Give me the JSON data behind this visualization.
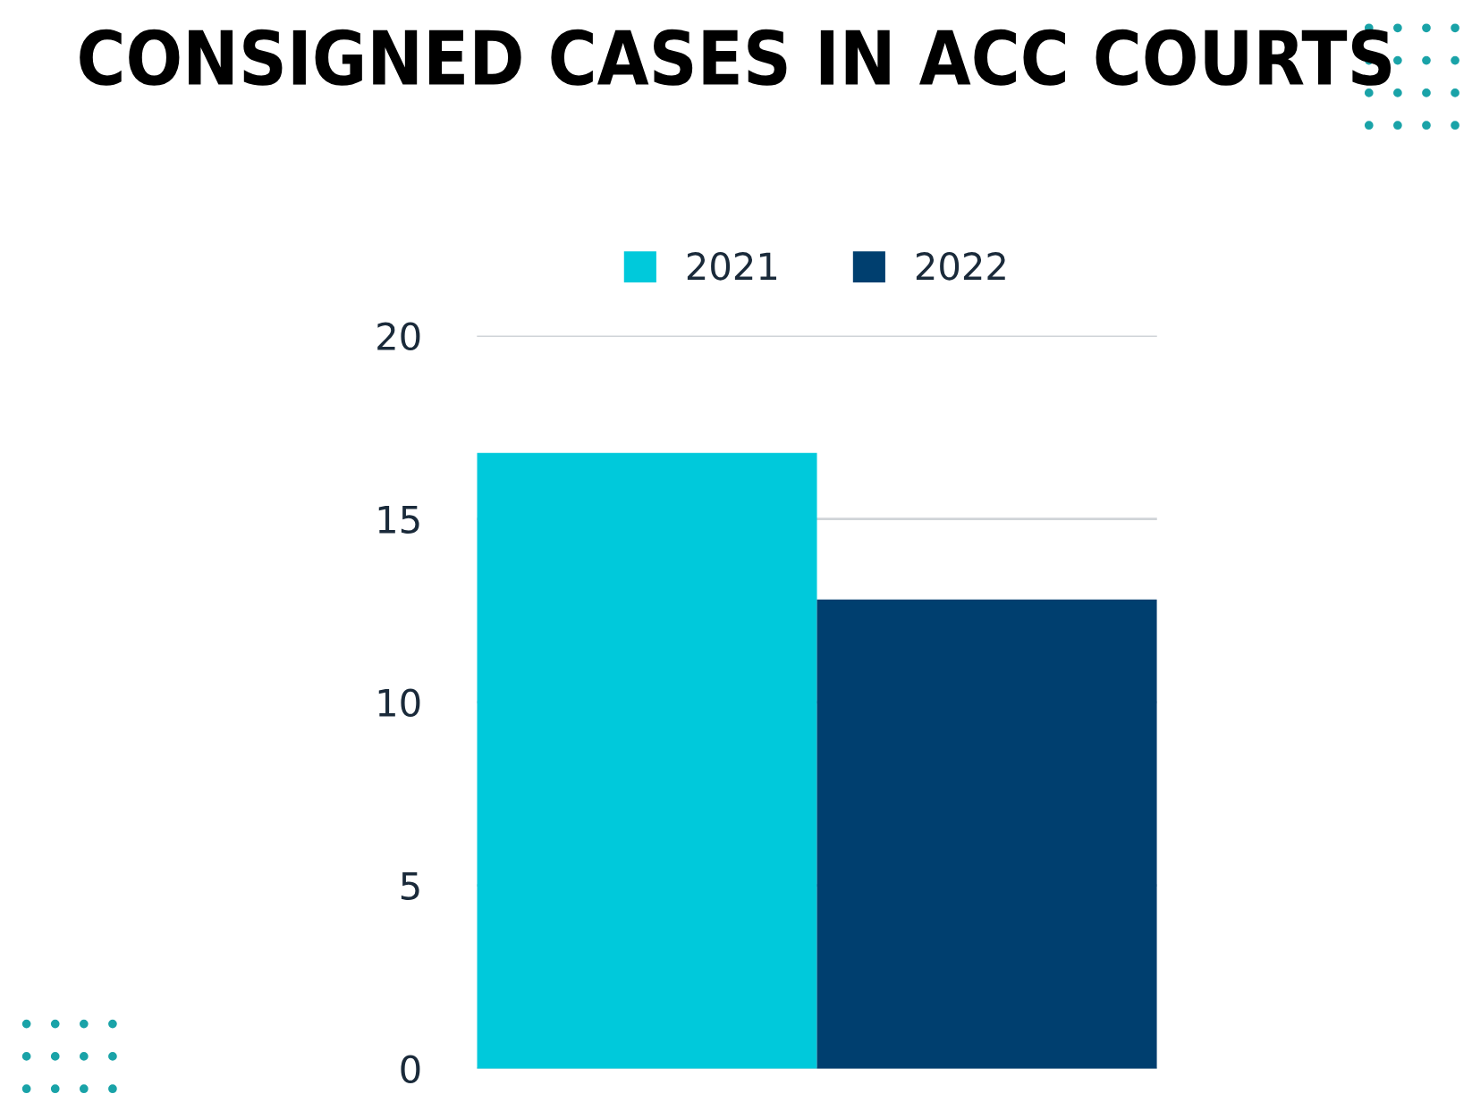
{
  "chart_data": {
    "type": "bar",
    "title": "CONSIGNED CASES IN ACC COURTS",
    "categories": [
      null
    ],
    "series": [
      {
        "name": "2021",
        "color": "#00c9db",
        "values": [
          16.8
        ]
      },
      {
        "name": "2022",
        "color": "#003f6f",
        "values": [
          12.8
        ]
      }
    ],
    "ylim": [
      0,
      20
    ],
    "yticks": [
      0,
      5,
      10,
      15,
      20
    ],
    "grid": "y",
    "legend": "top"
  }
}
